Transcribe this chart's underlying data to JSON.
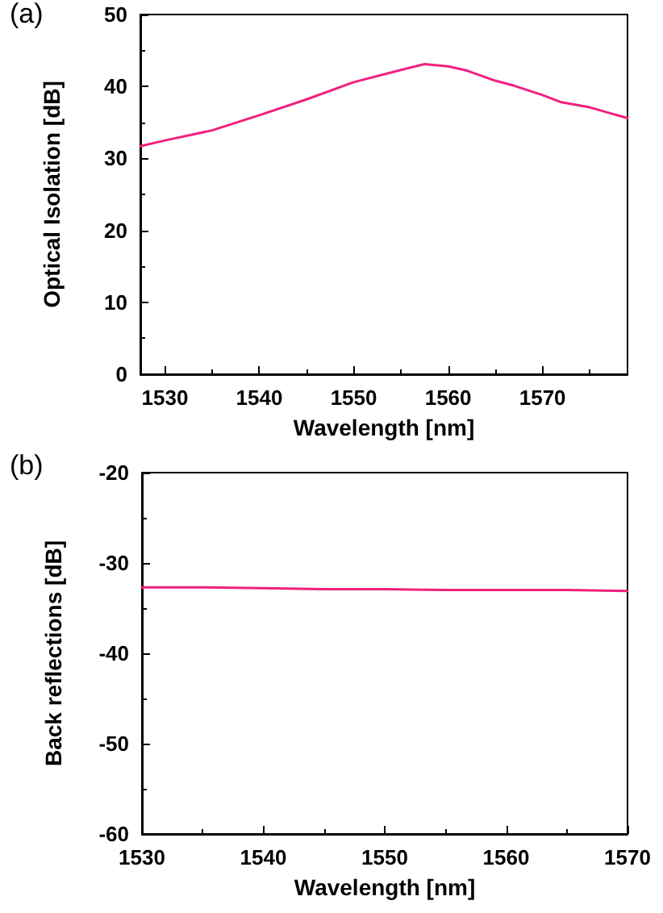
{
  "chart_data": [
    {
      "type": "line",
      "annotations": [
        "(a)"
      ],
      "xlabel": "Wavelength [nm]",
      "ylabel": "Optical Isolation [dB]",
      "xlim": [
        1527.4,
        1579
      ],
      "xticks": [
        1530,
        1540,
        1550,
        1560,
        1570
      ],
      "ylim": [
        0,
        50
      ],
      "yticks": [
        0,
        10,
        20,
        30,
        40,
        50
      ],
      "grid": false,
      "marker": "none",
      "line_style": "solid",
      "series": [
        {
          "color": "#f0207f",
          "x": [
            1527.4,
            1530,
            1535,
            1540,
            1545,
            1550,
            1555,
            1557.5,
            1560,
            1562,
            1565,
            1567,
            1570,
            1572,
            1575,
            1579
          ],
          "values": [
            31.7,
            32.5,
            33.9,
            36.0,
            38.2,
            40.6,
            42.3,
            43.1,
            42.8,
            42.2,
            40.8,
            40.1,
            38.8,
            37.8,
            37.1,
            35.6
          ]
        }
      ]
    },
    {
      "type": "line",
      "annotations": [
        "(b)"
      ],
      "xlabel": "Wavelength [nm]",
      "ylabel": "Back reflections [dB]",
      "xlim": [
        1530,
        1570
      ],
      "xticks": [
        1530,
        1540,
        1550,
        1560,
        1570
      ],
      "ylim": [
        -60,
        -20
      ],
      "yticks": [
        -60,
        -50,
        -40,
        -30,
        -20
      ],
      "grid": false,
      "marker": "none",
      "line_style": "solid",
      "series": [
        {
          "color": "#f0207f",
          "x": [
            1530,
            1535,
            1540,
            1545,
            1550,
            1555,
            1560,
            1565,
            1570
          ],
          "values": [
            -32.7,
            -32.7,
            -32.8,
            -32.9,
            -32.9,
            -33.0,
            -33.0,
            -33.0,
            -33.1
          ]
        }
      ]
    }
  ]
}
